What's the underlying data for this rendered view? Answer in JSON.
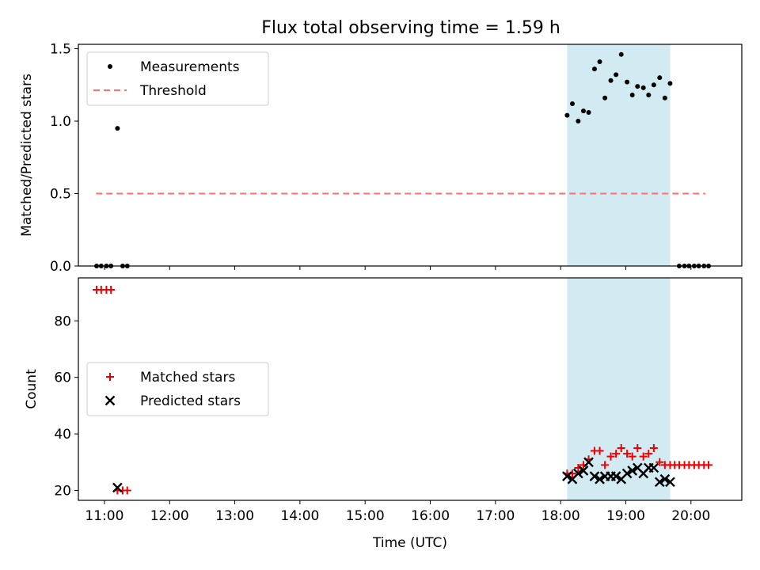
{
  "title": "Flux total observing time = 1.59 h",
  "colors": {
    "threshold": "#ff7070",
    "matched": "#ee0000",
    "predicted": "#000000",
    "shade": "#add8e6",
    "measurement": "#000000"
  },
  "chart_data": [
    {
      "type": "scatter",
      "ylabel": "Matched/Predicted stars",
      "ylim": [
        0,
        1.53
      ],
      "yticks": [
        0,
        0.5,
        1.0,
        1.5
      ],
      "ytick_labels": [
        "0.0",
        "0.5",
        "1.0",
        "1.5"
      ],
      "xlim": [
        10.6,
        20.78
      ],
      "shade": [
        18.1,
        19.68
      ],
      "legend": {
        "position": "upper-left",
        "entries": [
          "Measurements",
          "Threshold"
        ]
      },
      "threshold": {
        "name": "Threshold",
        "y": 0.5,
        "x": [
          10.87,
          20.22
        ]
      },
      "series": [
        {
          "name": "Measurements",
          "x": [
            10.88,
            10.95,
            11.03,
            11.1,
            11.2,
            11.28,
            11.35,
            18.1,
            18.18,
            18.27,
            18.35,
            18.43,
            18.52,
            18.6,
            18.68,
            18.77,
            18.85,
            18.93,
            19.02,
            19.1,
            19.18,
            19.27,
            19.35,
            19.43,
            19.52,
            19.6,
            19.68,
            19.82,
            19.9,
            19.97,
            20.05,
            20.12,
            20.2,
            20.27
          ],
          "y": [
            0,
            0,
            0,
            0,
            0.95,
            0,
            0,
            1.04,
            1.12,
            1.0,
            1.07,
            1.06,
            1.36,
            1.41,
            1.16,
            1.28,
            1.32,
            1.46,
            1.27,
            1.18,
            1.24,
            1.23,
            1.18,
            1.25,
            1.3,
            1.16,
            1.26,
            0,
            0,
            0,
            0,
            0,
            0,
            0
          ]
        }
      ]
    },
    {
      "type": "scatter",
      "xlabel": "Time (UTC)",
      "ylabel": "Count",
      "ylim": [
        16.5,
        95.2
      ],
      "yticks": [
        20,
        40,
        60,
        80
      ],
      "ytick_labels": [
        "20",
        "40",
        "60",
        "80"
      ],
      "xlim": [
        10.6,
        20.78
      ],
      "xticks": [
        11,
        12,
        13,
        14,
        15,
        16,
        17,
        18,
        19,
        20
      ],
      "xtick_labels": [
        "11:00",
        "12:00",
        "13:00",
        "14:00",
        "15:00",
        "16:00",
        "17:00",
        "18:00",
        "19:00",
        "20:00"
      ],
      "shade": [
        18.1,
        19.68
      ],
      "legend": {
        "position": "center-left",
        "entries": [
          "Matched stars",
          "Predicted stars"
        ]
      },
      "series": [
        {
          "name": "Matched stars",
          "x": [
            10.88,
            10.95,
            11.03,
            11.1,
            11.2,
            11.28,
            11.35,
            18.1,
            18.18,
            18.27,
            18.35,
            18.43,
            18.52,
            18.6,
            18.68,
            18.77,
            18.85,
            18.93,
            19.02,
            19.1,
            19.18,
            19.27,
            19.35,
            19.43,
            19.52,
            19.6,
            19.68,
            19.75,
            19.82,
            19.9,
            19.97,
            20.05,
            20.12,
            20.2,
            20.27
          ],
          "y": [
            91,
            91,
            91,
            91,
            20,
            20,
            20,
            26,
            26,
            28,
            29,
            31,
            34,
            34,
            29,
            32,
            33,
            35,
            33,
            32,
            35,
            32,
            33,
            35,
            30,
            29,
            29,
            29,
            29,
            29,
            29,
            29,
            29,
            29,
            29
          ]
        },
        {
          "name": "Predicted stars",
          "x": [
            11.2,
            18.1,
            18.18,
            18.27,
            18.35,
            18.43,
            18.52,
            18.6,
            18.68,
            18.77,
            18.85,
            18.93,
            19.02,
            19.1,
            19.18,
            19.27,
            19.35,
            19.43,
            19.52,
            19.6,
            19.68
          ],
          "y": [
            21,
            25,
            24,
            26,
            27,
            30,
            25,
            24,
            25,
            25,
            25,
            24,
            26,
            27,
            28,
            26,
            28,
            28,
            23,
            24,
            23
          ]
        }
      ]
    }
  ]
}
